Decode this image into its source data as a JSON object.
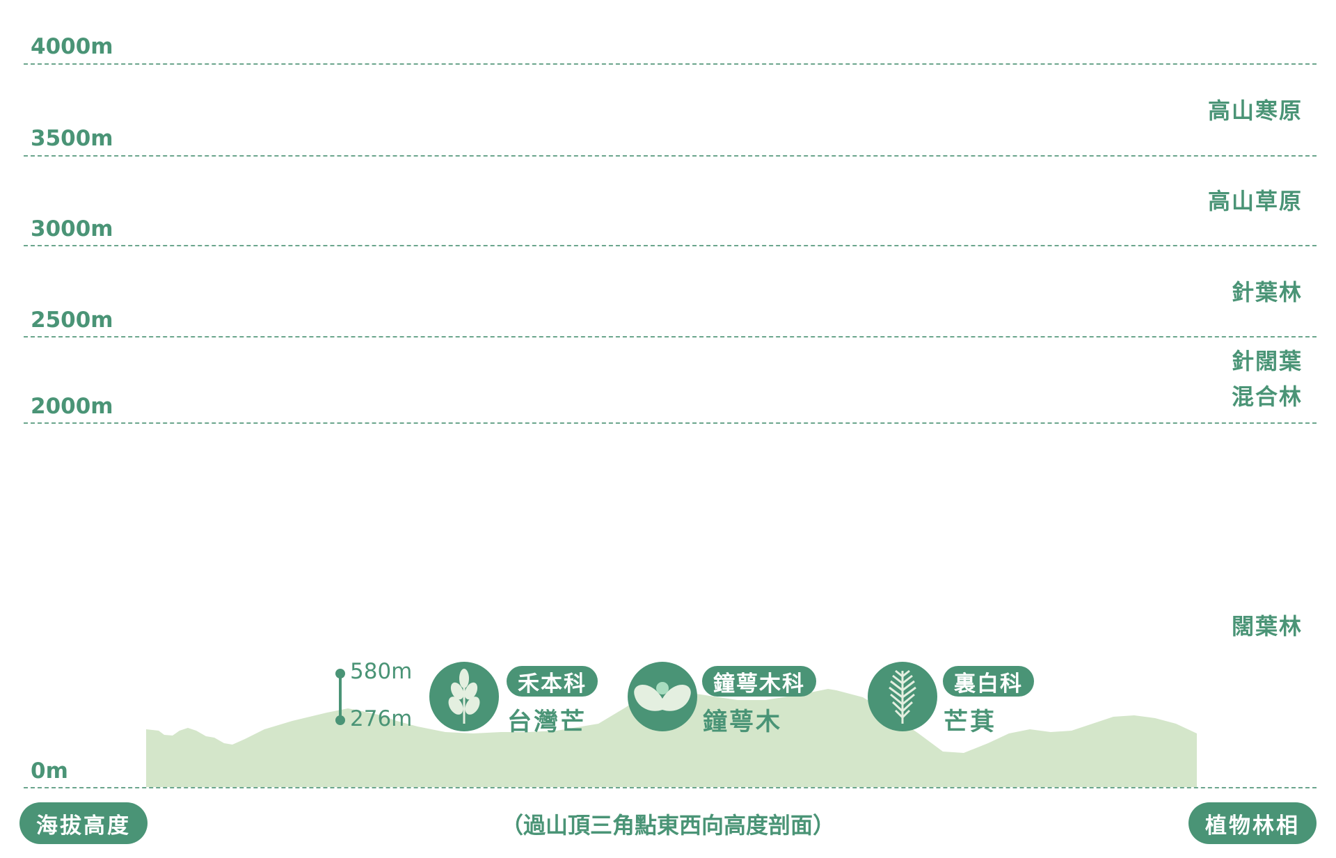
{
  "altitudes": [
    "4000m",
    "3500m",
    "3000m",
    "2500m",
    "2000m",
    "0m"
  ],
  "zones": {
    "alpine_tundra": "高山寒原",
    "alpine_meadow": "高山草原",
    "conifer": "針葉林",
    "mixed_line1": "針闊葉",
    "mixed_line2": "混合林",
    "broadleaf": "闊葉林"
  },
  "range": {
    "top": "580m",
    "bottom": "276m"
  },
  "plants": [
    {
      "family": "禾本科",
      "species": "台灣芒",
      "icon": "grass-leaf-icon"
    },
    {
      "family": "鐘萼木科",
      "species": "鐘萼木",
      "icon": "flower-icon"
    },
    {
      "family": "裏白科",
      "species": "芒萁",
      "icon": "fern-icon"
    }
  ],
  "footer": {
    "left_pill": "海拔高度",
    "caption": "（過山頂三角點東西向高度剖面）",
    "right_pill": "植物林相"
  },
  "colors": {
    "accent": "#4a9476",
    "terrain": "#d4e6ca",
    "icon_light": "#e4efe0"
  }
}
